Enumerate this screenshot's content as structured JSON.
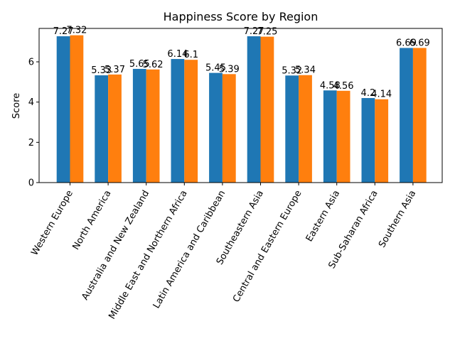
{
  "chart_data": {
    "type": "bar",
    "title": "Happiness Score by Region",
    "xlabel": "",
    "ylabel": "Score",
    "ylim": [
      0,
      7.66
    ],
    "yticks": [
      0,
      2,
      4,
      6
    ],
    "grid": false,
    "categories": [
      "Western Europe",
      "North America",
      "Australia and New Zealand",
      "Middle East and Northern Africa",
      "Latin America and Caribbean",
      "Southeastern Asia",
      "Central and Eastern Europe",
      "Eastern Asia",
      "Sub-Saharan Africa",
      "Southern Asia"
    ],
    "series": [
      {
        "color": "#1f77b4",
        "values": [
          7.27,
          5.33,
          5.65,
          6.14,
          5.45,
          7.27,
          5.32,
          4.58,
          4.2,
          6.69
        ],
        "labels": [
          "7.27",
          "5.33",
          "5.65",
          "6.14",
          "5.45",
          "7.27",
          "5.32",
          "4.58",
          "4.2",
          "6.69"
        ]
      },
      {
        "color": "#ff7f0e",
        "values": [
          7.32,
          5.37,
          5.62,
          6.1,
          5.39,
          7.25,
          5.34,
          4.56,
          4.14,
          6.69
        ],
        "labels": [
          "7.32",
          "5.37",
          "5.62",
          "6.1",
          "5.39",
          "7.25",
          "5.34",
          "4.56",
          "4.14",
          "6.69"
        ]
      }
    ]
  }
}
